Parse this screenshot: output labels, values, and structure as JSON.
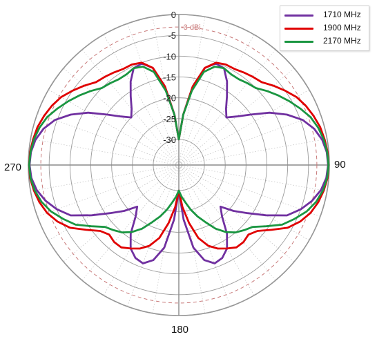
{
  "chart_data": {
    "type": "polar",
    "title": "",
    "radial_ticks": [
      0,
      -5,
      -10,
      -15,
      -20,
      -25,
      -30
    ],
    "radial_range": [
      -30,
      0
    ],
    "reference_circle": {
      "value": -3,
      "label": "-3 dBi",
      "color": "#c87878"
    },
    "angle_labels": [
      {
        "angle": 90,
        "text": "90"
      },
      {
        "angle": 180,
        "text": "180"
      },
      {
        "angle": 270,
        "text": "270"
      }
    ],
    "legend_position": "top-right",
    "grid": true,
    "series": [
      {
        "name": "1710 MHz",
        "color": "#7030a0",
        "points": [
          [
            0,
            -30
          ],
          [
            5,
            -24
          ],
          [
            10,
            -17
          ],
          [
            15,
            -12
          ],
          [
            20,
            -10.2
          ],
          [
            25,
            -10.5
          ],
          [
            30,
            -13
          ],
          [
            35,
            -16
          ],
          [
            40,
            -18.5
          ],
          [
            45,
            -20
          ],
          [
            50,
            -18
          ],
          [
            55,
            -15
          ],
          [
            60,
            -11
          ],
          [
            65,
            -7.5
          ],
          [
            70,
            -4.5
          ],
          [
            75,
            -2.5
          ],
          [
            80,
            -1.2
          ],
          [
            85,
            -0.5
          ],
          [
            90,
            -0.3
          ],
          [
            95,
            -0.6
          ],
          [
            100,
            -1.5
          ],
          [
            105,
            -3
          ],
          [
            110,
            -5
          ],
          [
            115,
            -7.5
          ],
          [
            120,
            -12
          ],
          [
            125,
            -16
          ],
          [
            130,
            -19
          ],
          [
            135,
            -22
          ],
          [
            140,
            -20
          ],
          [
            145,
            -16
          ],
          [
            150,
            -13
          ],
          [
            155,
            -11.5
          ],
          [
            160,
            -11
          ],
          [
            165,
            -12.5
          ],
          [
            170,
            -16
          ],
          [
            175,
            -23
          ],
          [
            180,
            -30
          ],
          [
            185,
            -23
          ],
          [
            190,
            -16
          ],
          [
            195,
            -12.5
          ],
          [
            200,
            -11
          ],
          [
            205,
            -11.5
          ],
          [
            210,
            -13
          ],
          [
            215,
            -16
          ],
          [
            220,
            -20
          ],
          [
            225,
            -22
          ],
          [
            230,
            -19
          ],
          [
            235,
            -16
          ],
          [
            240,
            -12
          ],
          [
            245,
            -7.5
          ],
          [
            250,
            -5
          ],
          [
            255,
            -3
          ],
          [
            260,
            -1.5
          ],
          [
            265,
            -0.6
          ],
          [
            270,
            -0.3
          ],
          [
            275,
            -0.5
          ],
          [
            280,
            -1.2
          ],
          [
            285,
            -2.5
          ],
          [
            290,
            -4.5
          ],
          [
            295,
            -7.5
          ],
          [
            300,
            -11
          ],
          [
            305,
            -15
          ],
          [
            310,
            -18
          ],
          [
            315,
            -20
          ],
          [
            320,
            -18.5
          ],
          [
            325,
            -16
          ],
          [
            330,
            -13
          ],
          [
            335,
            -10.5
          ],
          [
            340,
            -10.2
          ],
          [
            345,
            -12
          ],
          [
            350,
            -17
          ],
          [
            355,
            -24
          ],
          [
            360,
            -30
          ]
        ]
      },
      {
        "name": "1900 MHz",
        "color": "#e00000",
        "points": [
          [
            0,
            -30
          ],
          [
            5,
            -24
          ],
          [
            10,
            -17
          ],
          [
            15,
            -12
          ],
          [
            20,
            -10
          ],
          [
            25,
            -9.5
          ],
          [
            30,
            -9.5
          ],
          [
            35,
            -9
          ],
          [
            40,
            -8.5
          ],
          [
            45,
            -8
          ],
          [
            50,
            -6.5
          ],
          [
            55,
            -5
          ],
          [
            60,
            -3.5
          ],
          [
            65,
            -2.5
          ],
          [
            70,
            -1.7
          ],
          [
            75,
            -1
          ],
          [
            80,
            -0.6
          ],
          [
            85,
            -0.3
          ],
          [
            90,
            -0.2
          ],
          [
            95,
            -0.3
          ],
          [
            100,
            -0.8
          ],
          [
            105,
            -1.5
          ],
          [
            110,
            -2.5
          ],
          [
            115,
            -4
          ],
          [
            120,
            -6
          ],
          [
            125,
            -9
          ],
          [
            130,
            -11.5
          ],
          [
            135,
            -12.5
          ],
          [
            140,
            -12
          ],
          [
            145,
            -12
          ],
          [
            150,
            -13
          ],
          [
            155,
            -14
          ],
          [
            160,
            -15.5
          ],
          [
            165,
            -18
          ],
          [
            170,
            -22
          ],
          [
            175,
            -26
          ],
          [
            180,
            -30
          ],
          [
            185,
            -26
          ],
          [
            190,
            -22
          ],
          [
            195,
            -18
          ],
          [
            200,
            -15.5
          ],
          [
            205,
            -14
          ],
          [
            210,
            -13
          ],
          [
            215,
            -12
          ],
          [
            220,
            -12
          ],
          [
            225,
            -12.5
          ],
          [
            230,
            -11.5
          ],
          [
            235,
            -9
          ],
          [
            240,
            -6
          ],
          [
            245,
            -4
          ],
          [
            250,
            -2.5
          ],
          [
            255,
            -1.5
          ],
          [
            260,
            -0.8
          ],
          [
            265,
            -0.3
          ],
          [
            270,
            -0.2
          ],
          [
            275,
            -0.3
          ],
          [
            280,
            -0.6
          ],
          [
            285,
            -1
          ],
          [
            290,
            -1.7
          ],
          [
            295,
            -2.5
          ],
          [
            300,
            -3.5
          ],
          [
            305,
            -5
          ],
          [
            310,
            -6.5
          ],
          [
            315,
            -8
          ],
          [
            320,
            -8.5
          ],
          [
            325,
            -9
          ],
          [
            330,
            -9.5
          ],
          [
            335,
            -9.5
          ],
          [
            340,
            -10
          ],
          [
            345,
            -12
          ],
          [
            350,
            -17
          ],
          [
            355,
            -24
          ],
          [
            360,
            -30
          ]
        ]
      },
      {
        "name": "2170 MHz",
        "color": "#1a9641",
        "points": [
          [
            0,
            -30
          ],
          [
            5,
            -24
          ],
          [
            10,
            -18
          ],
          [
            15,
            -13
          ],
          [
            20,
            -11
          ],
          [
            25,
            -10.5
          ],
          [
            30,
            -11
          ],
          [
            35,
            -11
          ],
          [
            40,
            -10.5
          ],
          [
            45,
            -10
          ],
          [
            50,
            -8.5
          ],
          [
            55,
            -7
          ],
          [
            60,
            -5.5
          ],
          [
            65,
            -4
          ],
          [
            70,
            -2.5
          ],
          [
            75,
            -1.5
          ],
          [
            80,
            -0.8
          ],
          [
            85,
            -0.4
          ],
          [
            90,
            -0.2
          ],
          [
            95,
            -0.4
          ],
          [
            100,
            -1
          ],
          [
            105,
            -2
          ],
          [
            110,
            -3.5
          ],
          [
            115,
            -5.5
          ],
          [
            120,
            -7.5
          ],
          [
            125,
            -10.5
          ],
          [
            130,
            -13
          ],
          [
            135,
            -14
          ],
          [
            140,
            -15
          ],
          [
            145,
            -16.5
          ],
          [
            150,
            -18.5
          ],
          [
            155,
            -21
          ],
          [
            160,
            -23
          ],
          [
            165,
            -25
          ],
          [
            170,
            -27
          ],
          [
            175,
            -28.5
          ],
          [
            180,
            -30
          ],
          [
            185,
            -28.5
          ],
          [
            190,
            -27
          ],
          [
            195,
            -25
          ],
          [
            200,
            -23
          ],
          [
            205,
            -21
          ],
          [
            210,
            -18.5
          ],
          [
            215,
            -16.5
          ],
          [
            220,
            -15
          ],
          [
            225,
            -14
          ],
          [
            230,
            -13
          ],
          [
            235,
            -10.5
          ],
          [
            240,
            -7.5
          ],
          [
            245,
            -5.5
          ],
          [
            250,
            -3.5
          ],
          [
            255,
            -2
          ],
          [
            260,
            -1
          ],
          [
            265,
            -0.4
          ],
          [
            270,
            -0.2
          ],
          [
            275,
            -0.4
          ],
          [
            280,
            -0.8
          ],
          [
            285,
            -1.5
          ],
          [
            290,
            -2.5
          ],
          [
            295,
            -4
          ],
          [
            300,
            -5.5
          ],
          [
            305,
            -7
          ],
          [
            310,
            -8.5
          ],
          [
            315,
            -10
          ],
          [
            320,
            -10.5
          ],
          [
            325,
            -11
          ],
          [
            330,
            -11
          ],
          [
            335,
            -10.5
          ],
          [
            340,
            -11
          ],
          [
            345,
            -13
          ],
          [
            350,
            -18
          ],
          [
            355,
            -24
          ],
          [
            360,
            -30
          ]
        ]
      }
    ]
  }
}
